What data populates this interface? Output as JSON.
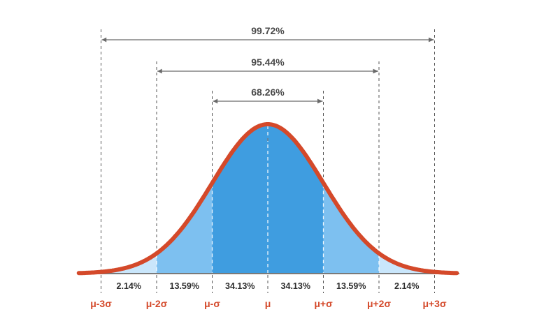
{
  "colors": {
    "curve": "#d4492a",
    "band_inner": "#3f9de0",
    "band_middle": "#7dc0f0",
    "band_outer": "#c9e6fb",
    "axis": "#7a7a7a",
    "bracket": "#6a6a6a",
    "guide": "#555555",
    "text": "#2e2e2e",
    "sigma_text": "#d4492a"
  },
  "chart_data": {
    "type": "area",
    "distribution": "normal",
    "x_range": [
      -3.4,
      3.4
    ],
    "sigma_ticks": [
      {
        "z": -3,
        "label": "μ-3σ"
      },
      {
        "z": -2,
        "label": "μ-2σ"
      },
      {
        "z": -1,
        "label": "μ-σ"
      },
      {
        "z": 0,
        "label": "μ"
      },
      {
        "z": 1,
        "label": "μ+σ"
      },
      {
        "z": 2,
        "label": "μ+2σ"
      },
      {
        "z": 3,
        "label": "μ+3σ"
      }
    ],
    "regions": [
      {
        "from": -3,
        "to": -2,
        "label": "2.14%",
        "value": 2.14,
        "band": "outer"
      },
      {
        "from": -2,
        "to": -1,
        "label": "13.59%",
        "value": 13.59,
        "band": "middle"
      },
      {
        "from": -1,
        "to": 0,
        "label": "34.13%",
        "value": 34.13,
        "band": "inner"
      },
      {
        "from": 0,
        "to": 1,
        "label": "34.13%",
        "value": 34.13,
        "band": "inner"
      },
      {
        "from": 1,
        "to": 2,
        "label": "13.59%",
        "value": 13.59,
        "band": "middle"
      },
      {
        "from": 2,
        "to": 3,
        "label": "2.14%",
        "value": 2.14,
        "band": "outer"
      }
    ],
    "brackets": [
      {
        "from": -3,
        "to": 3,
        "label": "99.72%",
        "value": 99.72
      },
      {
        "from": -2,
        "to": 2,
        "label": "95.44%",
        "value": 95.44
      },
      {
        "from": -1,
        "to": 1,
        "label": "68.26%",
        "value": 68.26
      }
    ]
  }
}
